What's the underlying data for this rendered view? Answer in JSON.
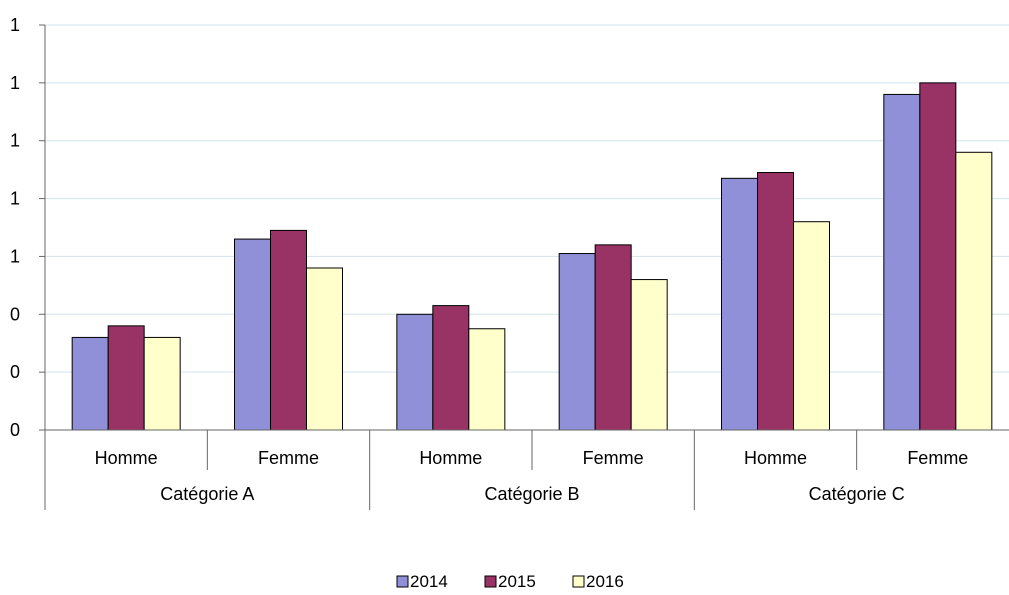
{
  "chart_data": {
    "type": "bar",
    "groups": [
      {
        "label": "Catégorie A",
        "categories": [
          "Homme",
          "Femme"
        ]
      },
      {
        "label": "Catégorie B",
        "categories": [
          "Homme",
          "Femme"
        ]
      },
      {
        "label": "Catégorie C",
        "categories": [
          "Homme",
          "Femme"
        ]
      }
    ],
    "series": [
      {
        "name": "2014",
        "color": "#9090d8",
        "values": [
          0.32,
          0.66,
          0.4,
          0.61,
          0.87,
          1.16
        ]
      },
      {
        "name": "2015",
        "color": "#993366",
        "values": [
          0.36,
          0.69,
          0.43,
          0.64,
          0.89,
          1.2
        ]
      },
      {
        "name": "2016",
        "color": "#ffffcc",
        "values": [
          0.32,
          0.56,
          0.35,
          0.52,
          0.72,
          0.96
        ]
      }
    ],
    "ylim": [
      0,
      1.4
    ],
    "ytick_values": [
      0,
      0.2,
      0.4,
      0.6,
      0.8,
      1.0,
      1.2,
      1.4
    ],
    "ytick_labels": [
      "0",
      "0",
      "0",
      "1",
      "1",
      "1",
      "1",
      "1"
    ],
    "grid": true,
    "legend_position": "bottom-center",
    "title": "",
    "xlabel": "",
    "ylabel": ""
  }
}
